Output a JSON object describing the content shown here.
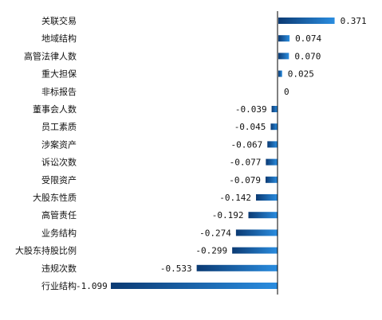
{
  "chart_data": {
    "type": "bar",
    "orientation": "horizontal",
    "categories": [
      "关联交易",
      "地域结构",
      "高管法律人数",
      "重大担保",
      "非标报告",
      "董事会人数",
      "员工素质",
      "涉案资产",
      "诉讼次数",
      "受限资产",
      "大股东性质",
      "高管责任",
      "业务结构",
      "大股东持股比例",
      "违规次数",
      "行业结构"
    ],
    "value_labels": [
      "0.371",
      "0.074",
      "0.070",
      "0.025",
      "0",
      "-0.039",
      "-0.045",
      "-0.067",
      "-0.077",
      "-0.079",
      "-0.142",
      "-0.192",
      "-0.274",
      "-0.299",
      "-0.533",
      "-1.099"
    ],
    "values": [
      0.371,
      0.074,
      0.07,
      0.025,
      0,
      -0.039,
      -0.045,
      -0.067,
      -0.077,
      -0.079,
      -0.142,
      -0.192,
      -0.274,
      -0.299,
      -0.533,
      -1.099
    ],
    "xlim": [
      -1.1,
      0.4
    ],
    "grid": false,
    "legend": "none",
    "colors": {
      "bar_dark": "#0b3a73",
      "bar_light": "#2a8de0",
      "axis": "#000000"
    }
  }
}
